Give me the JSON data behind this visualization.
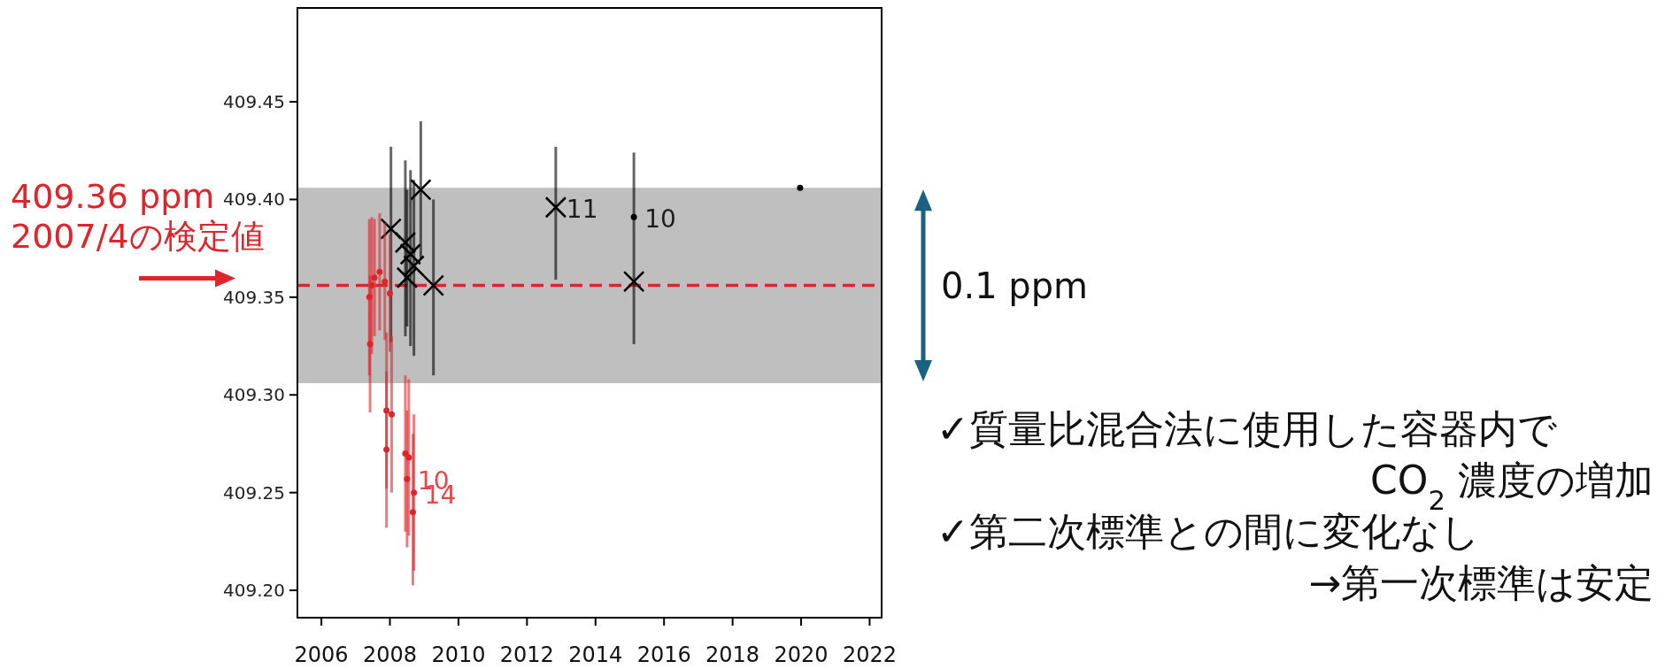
{
  "chart_data": {
    "type": "scatter",
    "xlim": [
      2005.3,
      2022.35
    ],
    "ylim": [
      409.186,
      409.498
    ],
    "xticks": [
      2006,
      2008,
      2010,
      2012,
      2014,
      2016,
      2018,
      2020,
      2022
    ],
    "yticks": [
      {
        "value": 409.2,
        "label": "409.20"
      },
      {
        "value": 409.25,
        "label": "409.25"
      },
      {
        "value": 409.3,
        "label": "409.30"
      },
      {
        "value": 409.35,
        "label": "409.35"
      },
      {
        "value": 409.4,
        "label": "409.40"
      },
      {
        "value": 409.45,
        "label": "409.45"
      }
    ],
    "grid": false,
    "series": [
      {
        "color": "#000000",
        "marker": "cross",
        "x": [
          2008.03,
          2008.45,
          2008.6,
          2008.7,
          2008.5,
          2008.9,
          2009.27,
          2012.84,
          2015.12
        ],
        "values": [
          409.385,
          409.378,
          409.372,
          409.366,
          409.36,
          409.405,
          409.356,
          409.396,
          409.358
        ],
        "errors": [
          [
            409.327,
            409.427
          ],
          [
            409.33,
            409.42
          ],
          [
            409.325,
            409.415
          ],
          [
            409.32,
            409.41
          ],
          [
            409.335,
            409.405
          ],
          [
            409.37,
            409.44
          ],
          [
            409.31,
            409.4
          ],
          [
            409.359,
            409.427
          ],
          [
            409.326,
            409.424
          ]
        ]
      },
      {
        "color": "#000000",
        "marker": "circle",
        "x": [
          2015.12,
          2019.97
        ],
        "values": [
          409.391,
          409.406
        ]
      },
      {
        "color": "#e0242c",
        "marker": "circle",
        "x": [
          2007.4,
          2007.47,
          2007.55,
          2007.7,
          2007.85,
          2008.0,
          2007.42,
          2007.9,
          2008.05,
          2007.9,
          2008.45,
          2008.55,
          2008.5,
          2008.7,
          2008.67
        ],
        "values": [
          409.35,
          409.356,
          409.36,
          409.363,
          409.358,
          409.352,
          409.326,
          409.292,
          409.29,
          409.272,
          409.27,
          409.268,
          409.257,
          409.25,
          409.24
        ],
        "errors": [
          0.04,
          0.035,
          0.03,
          0.03,
          0.03,
          0.03,
          0.035,
          0.04,
          0.04,
          0.04,
          0.04,
          0.04,
          0.035,
          0.04,
          [
            409.2025,
            409.28
          ]
        ]
      }
    ],
    "ref_lines": [
      {
        "axis": "y",
        "value": 409.356,
        "label": "409.36 ppm\n2007/4の検定値",
        "color": "#e0242c",
        "line_style": "dashed"
      }
    ],
    "bands": [
      {
        "axis": "y",
        "from": 409.306,
        "to": 409.406,
        "label": "0.1 ppm",
        "color": "#bfbfbf"
      }
    ],
    "annotations": [
      {
        "text": "11",
        "x": 2012.84,
        "y": 409.396
      },
      {
        "text": "10",
        "x": 2015.12,
        "y": 409.391
      },
      {
        "text": "10",
        "x": 2008.5,
        "y": 409.257
      },
      {
        "text": "14",
        "x": 2008.7,
        "y": 409.25
      },
      "✓質量比混合法に使用した容器内で\nCO$_{2}$ 濃度の増加",
      "✓第二次標準との間に変化なし\n→第一次標準は安定"
    ]
  }
}
